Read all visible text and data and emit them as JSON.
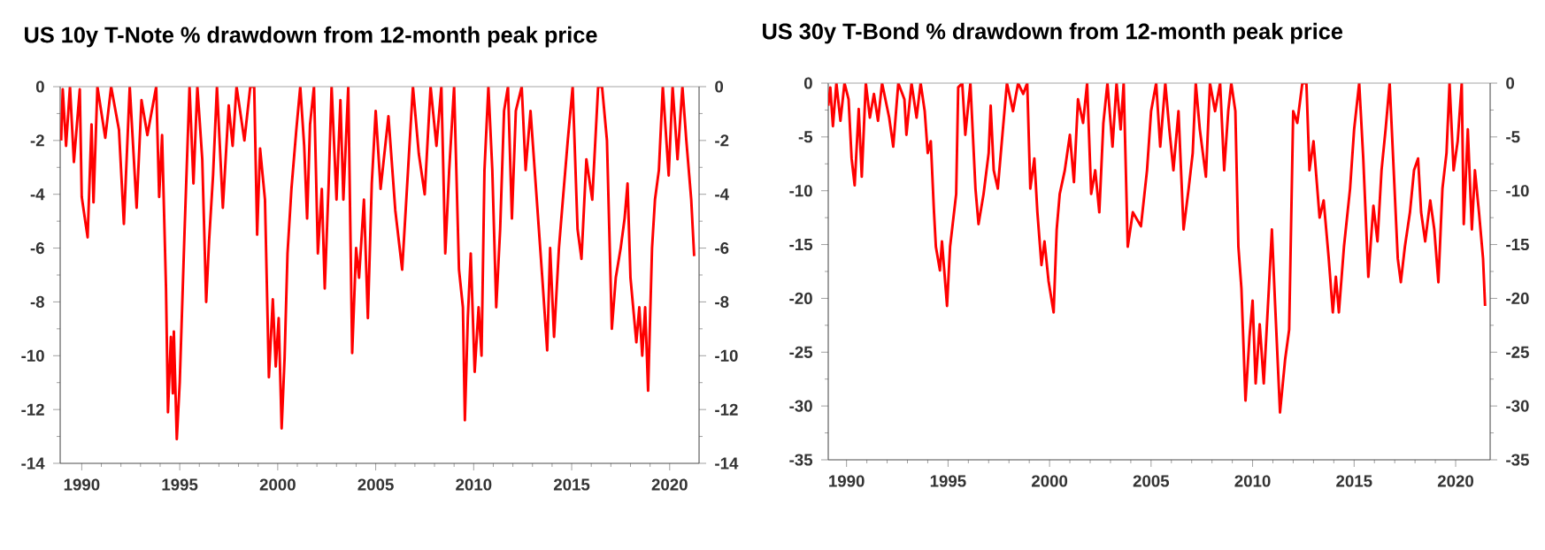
{
  "chart_data": [
    {
      "type": "line",
      "title": "US 10y T-Note % drawdown from 12-month peak price",
      "color": "#ff0000",
      "x": [
        1988.95,
        1989.03,
        1989.2,
        1989.4,
        1989.6,
        1989.9,
        1990.0,
        1990.3,
        1990.5,
        1990.6,
        1990.8,
        1991.2,
        1991.5,
        1991.9,
        1992.15,
        1992.45,
        1992.8,
        1993.05,
        1993.35,
        1993.8,
        1993.95,
        1994.1,
        1994.3,
        1994.4,
        1994.55,
        1994.65,
        1994.7,
        1994.85,
        1995.0,
        1995.25,
        1995.5,
        1995.7,
        1995.9,
        1996.15,
        1996.35,
        1996.5,
        1996.7,
        1996.9,
        1997.2,
        1997.5,
        1997.7,
        1997.9,
        1998.3,
        1998.6,
        1998.8,
        1998.95,
        1999.1,
        1999.35,
        1999.55,
        1999.75,
        1999.9,
        2000.05,
        2000.2,
        2000.35,
        2000.5,
        2000.7,
        2000.95,
        2001.15,
        2001.35,
        2001.5,
        2001.65,
        2001.85,
        2002.05,
        2002.25,
        2002.4,
        2002.6,
        2002.75,
        2003.0,
        2003.2,
        2003.35,
        2003.6,
        2003.8,
        2004.0,
        2004.15,
        2004.4,
        2004.6,
        2004.8,
        2005.0,
        2005.25,
        2005.65,
        2006.0,
        2006.35,
        2006.65,
        2006.9,
        2007.2,
        2007.5,
        2007.8,
        2008.1,
        2008.35,
        2008.55,
        2008.75,
        2009.0,
        2009.25,
        2009.45,
        2009.55,
        2009.7,
        2009.85,
        2010.05,
        2010.25,
        2010.4,
        2010.55,
        2010.75,
        2010.95,
        2011.15,
        2011.35,
        2011.55,
        2011.75,
        2011.95,
        2012.15,
        2012.45,
        2012.65,
        2012.9,
        2013.2,
        2013.5,
        2013.75,
        2013.9,
        2014.1,
        2014.35,
        2014.55,
        2014.8,
        2015.05,
        2015.3,
        2015.5,
        2015.75,
        2016.05,
        2016.35,
        2016.55,
        2016.8,
        2017.05,
        2017.25,
        2017.5,
        2017.7,
        2017.85,
        2018.0,
        2018.3,
        2018.45,
        2018.6,
        2018.75,
        2018.9,
        2019.1,
        2019.25,
        2019.45,
        2019.65,
        2019.95,
        2020.15,
        2020.4,
        2020.65,
        2020.85,
        2021.1,
        2021.25
      ],
      "values": [
        -2.0,
        -0.1,
        -2.2,
        0,
        -2.8,
        -0.1,
        -4.1,
        -5.6,
        -1.4,
        -4.3,
        0,
        -1.9,
        0,
        -1.6,
        -5.1,
        0,
        -4.5,
        -0.5,
        -1.8,
        0,
        -4.1,
        -1.8,
        -7.5,
        -12.1,
        -9.3,
        -11.4,
        -9.1,
        -13.1,
        -11.0,
        -5.3,
        0,
        -3.6,
        0,
        -2.7,
        -8.0,
        -5.7,
        -3.3,
        0,
        -4.5,
        -0.7,
        -2.2,
        0,
        -2.0,
        0,
        0,
        -5.5,
        -2.3,
        -4.2,
        -10.8,
        -7.9,
        -10.4,
        -8.6,
        -12.7,
        -10.1,
        -6.2,
        -3.8,
        -1.6,
        0,
        -2.2,
        -4.9,
        -1.4,
        0,
        -6.2,
        -3.8,
        -7.5,
        -3.6,
        0,
        -4.2,
        -0.5,
        -4.2,
        0,
        -9.9,
        -6.0,
        -7.1,
        -4.2,
        -8.6,
        -3.6,
        -0.9,
        -3.8,
        -1.1,
        -4.6,
        -6.8,
        -3.1,
        0,
        -2.5,
        -4.0,
        0,
        -2.2,
        0,
        -6.2,
        -3.1,
        0,
        -6.8,
        -8.2,
        -12.4,
        -8.6,
        -6.2,
        -10.6,
        -8.2,
        -10.0,
        -3.1,
        0,
        -3.1,
        -8.2,
        -5.3,
        -0.9,
        0,
        -4.9,
        -0.9,
        0,
        -3.1,
        -0.9,
        -4.0,
        -7.1,
        -9.8,
        -6.0,
        -9.3,
        -6.0,
        -4.2,
        -2.0,
        0,
        -5.3,
        -6.4,
        -2.7,
        -4.2,
        0,
        0,
        -2.0,
        -9.0,
        -7.1,
        -6.0,
        -4.9,
        -3.6,
        -7.1,
        -9.5,
        -8.2,
        -10.0,
        -8.2,
        -11.3,
        -6.0,
        -4.2,
        -3.1,
        0,
        -3.3,
        0,
        -2.7,
        0,
        -2.0,
        -4.2,
        -6.3
      ],
      "xlim": [
        1988.9,
        2021.5
      ],
      "xticks": [
        1990,
        1995,
        2000,
        2005,
        2010,
        2015,
        2020
      ],
      "ylim": [
        -14,
        0
      ],
      "yticks": [
        -14,
        -12,
        -10,
        -8,
        -6,
        -4,
        -2,
        0
      ],
      "y2lim": [
        -14,
        0
      ],
      "y2ticks": [
        -14,
        -12,
        -10,
        -8,
        -6,
        -4,
        -2,
        0
      ]
    },
    {
      "type": "line",
      "title": "US 30y T-Bond % drawdown from 12-month peak price",
      "color": "#ff0000",
      "x": [
        1989.1,
        1989.2,
        1989.33,
        1989.5,
        1989.7,
        1989.9,
        1990.1,
        1990.25,
        1990.4,
        1990.6,
        1990.75,
        1990.95,
        1991.15,
        1991.35,
        1991.55,
        1991.75,
        1992.1,
        1992.3,
        1992.55,
        1992.85,
        1992.95,
        1993.2,
        1993.45,
        1993.65,
        1993.85,
        1994.0,
        1994.15,
        1994.3,
        1994.4,
        1994.6,
        1994.7,
        1994.95,
        1995.1,
        1995.4,
        1995.5,
        1995.7,
        1995.85,
        1996.1,
        1996.35,
        1996.5,
        1996.75,
        1997.0,
        1997.1,
        1997.25,
        1997.45,
        1997.7,
        1997.9,
        1998.2,
        1998.45,
        1998.7,
        1998.9,
        1999.05,
        1999.25,
        1999.4,
        1999.6,
        1999.75,
        1999.95,
        2000.2,
        2000.35,
        2000.5,
        2000.75,
        2001.0,
        2001.2,
        2001.4,
        2001.65,
        2001.85,
        2002.05,
        2002.25,
        2002.45,
        2002.65,
        2002.85,
        2003.1,
        2003.3,
        2003.5,
        2003.65,
        2003.85,
        2004.1,
        2004.5,
        2004.8,
        2005.0,
        2005.25,
        2005.45,
        2005.7,
        2005.9,
        2006.1,
        2006.35,
        2006.6,
        2006.85,
        2007.05,
        2007.2,
        2007.4,
        2007.7,
        2007.9,
        2008.15,
        2008.4,
        2008.6,
        2008.8,
        2008.95,
        2009.15,
        2009.3,
        2009.45,
        2009.65,
        2009.85,
        2010.0,
        2010.15,
        2010.35,
        2010.55,
        2010.8,
        2010.95,
        2011.1,
        2011.35,
        2011.6,
        2011.8,
        2012.0,
        2012.2,
        2012.45,
        2012.65,
        2012.8,
        2013.0,
        2013.3,
        2013.5,
        2013.75,
        2013.95,
        2014.1,
        2014.25,
        2014.5,
        2014.8,
        2015.0,
        2015.25,
        2015.45,
        2015.7,
        2015.95,
        2016.15,
        2016.35,
        2016.55,
        2016.75,
        2016.95,
        2017.15,
        2017.3,
        2017.5,
        2017.75,
        2017.95,
        2018.15,
        2018.3,
        2018.5,
        2018.75,
        2018.95,
        2019.15,
        2019.35,
        2019.55,
        2019.7,
        2019.9,
        2020.1,
        2020.3,
        2020.4,
        2020.6,
        2020.8,
        2020.95,
        2021.15,
        2021.35,
        2021.45
      ],
      "values": [
        -2.1,
        -0.4,
        -4.0,
        0,
        -3.5,
        0,
        -1.5,
        -7.0,
        -9.5,
        -2.4,
        -8.7,
        0,
        -3.2,
        -1.0,
        -3.5,
        0,
        -3.2,
        -5.9,
        0,
        -1.5,
        -4.8,
        0,
        -3.2,
        0,
        -2.6,
        -6.5,
        -5.4,
        -11.7,
        -15.2,
        -17.4,
        -14.7,
        -20.7,
        -15.2,
        -10.3,
        -0.4,
        0,
        -4.8,
        0,
        -9.8,
        -13.1,
        -10.3,
        -6.5,
        -2.1,
        -8.1,
        -9.8,
        -4.3,
        0,
        -2.6,
        0,
        -1.0,
        0,
        -9.8,
        -7.0,
        -12.0,
        -16.9,
        -14.7,
        -18.4,
        -21.3,
        -13.6,
        -10.3,
        -8.1,
        -4.8,
        -9.2,
        -1.5,
        -3.7,
        0,
        -10.3,
        -8.1,
        -12.0,
        -3.7,
        0,
        -5.9,
        0,
        -4.3,
        0,
        -15.2,
        -12.0,
        -13.3,
        -8.1,
        -2.6,
        0,
        -5.9,
        0,
        -4.3,
        -8.1,
        -2.6,
        -13.6,
        -9.8,
        -6.5,
        0,
        -4.3,
        -8.7,
        0,
        -2.6,
        0,
        -8.1,
        -2.6,
        0,
        -2.6,
        -15.2,
        -19.1,
        -29.5,
        -23.5,
        -20.2,
        -27.9,
        -22.4,
        -27.9,
        -19.1,
        -13.6,
        -20.2,
        -30.6,
        -25.7,
        -22.9,
        -2.6,
        -3.7,
        0,
        0,
        -8.1,
        -5.4,
        -12.5,
        -10.9,
        -16.3,
        -21.3,
        -18.0,
        -21.3,
        -15.2,
        -9.8,
        -4.3,
        0,
        -7.0,
        -18.0,
        -11.4,
        -14.7,
        -8.1,
        -4.3,
        0,
        -8.1,
        -16.3,
        -18.5,
        -15.2,
        -12.0,
        -8.1,
        -7.0,
        -12.0,
        -14.7,
        -10.9,
        -13.6,
        -18.5,
        -9.8,
        -6.5,
        0,
        -8.1,
        -5.4,
        0,
        -13.1,
        -4.3,
        -13.6,
        -8.1,
        -12.0,
        -16.3,
        -20.7
      ],
      "xlim": [
        1989.1,
        2021.7
      ],
      "xticks": [
        1990,
        1995,
        2000,
        2005,
        2010,
        2015,
        2020
      ],
      "ylim": [
        -35,
        0
      ],
      "yticks": [
        -35,
        -30,
        -25,
        -20,
        -15,
        -10,
        -5,
        0
      ],
      "y2lim": [
        -35,
        0
      ],
      "y2ticks": [
        -35,
        -30,
        -25,
        -20,
        -15,
        -10,
        -5,
        0
      ]
    }
  ]
}
